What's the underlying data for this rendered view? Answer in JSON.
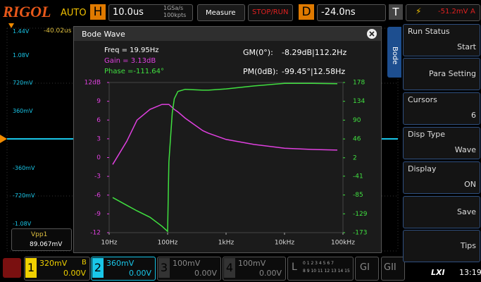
{
  "top_bar": {
    "brand": "RIGOL",
    "mode": "AUTO",
    "h_label": "H",
    "timebase": "10.0us",
    "sample_rate": "1GSa/s",
    "memory": "100kpts",
    "measure": "Measure",
    "run": "STOP/RUN",
    "d_label": "D",
    "delay": "-24.0ns",
    "t_label": "T",
    "trigger_level": "-51.2mV",
    "trigger_source": "A"
  },
  "scope": {
    "offset": "-40.02us",
    "scale_labels": [
      "1.44V",
      "1.08V",
      "720mV",
      "360mV",
      "-360mV",
      "-720mV",
      "-1.08V"
    ],
    "measurement": {
      "label": "Vpp1",
      "value": "89.067mV"
    }
  },
  "bode": {
    "title": "Bode Wave",
    "freq": "Freq = 19.95Hz",
    "gain": "Gain = 3.13dB",
    "phase": "Phase =-111.64°",
    "gm_label": "GM(0°):",
    "gm_value": "-8.29dB|112.2Hz",
    "pm_label": "PM(0dB):",
    "pm_value": "-99.45°|12.58Hz",
    "chart": {
      "type": "line",
      "log_x": true,
      "x": [
        11.5,
        20,
        30,
        50,
        80,
        100,
        105,
        120,
        130,
        150,
        200,
        400,
        500,
        1000,
        3000,
        10000,
        30000,
        80000
      ],
      "xlim": [
        10,
        100000
      ],
      "xticks": [
        {
          "value": 10,
          "label": "10Hz"
        },
        {
          "value": 100,
          "label": "100Hz"
        },
        {
          "value": 1000,
          "label": "1kHz"
        },
        {
          "value": 10000,
          "label": "10kHz"
        },
        {
          "value": 100000,
          "label": "100kHz"
        }
      ],
      "ylim": [
        -12,
        12
      ],
      "yticks": [
        {
          "value": 12,
          "label": "12dB"
        },
        9,
        6,
        3,
        0,
        -3,
        -6,
        -9,
        -12
      ],
      "y2lim": [
        -173,
        178
      ],
      "y2ticks": [
        178,
        134,
        90,
        46,
        2,
        -41,
        -85,
        -129,
        -173
      ],
      "series": [
        {
          "color": "#e040e0",
          "values": [
            -1.1,
            2.6,
            6,
            7.7,
            8.5,
            8.5,
            8.5,
            8.0,
            7.7,
            7.3,
            6.3,
            4.3,
            3.9,
            2.9,
            2.1,
            1.5,
            1.3,
            1.2
          ]
        },
        {
          "color": "#40e040",
          "axis": "y2",
          "values": [
            -91,
            -109,
            -122,
            -137,
            -158,
            -170,
            -8,
            107,
            140,
            157,
            162,
            160,
            160,
            163,
            170,
            176,
            176,
            175
          ]
        }
      ]
    }
  },
  "side_menu": {
    "tab": "Bode",
    "items": [
      {
        "label": "Run Status",
        "value": "Start"
      },
      {
        "label": "Para Setting"
      },
      {
        "label": "Cursors",
        "value": "6"
      },
      {
        "label": "Disp Type",
        "value": "Wave"
      },
      {
        "label": "Display",
        "value": "ON"
      },
      {
        "label": "Save"
      },
      {
        "label": "Tips"
      }
    ]
  },
  "bottom_bar": {
    "channels": [
      {
        "number": "1",
        "scale": "320mV",
        "flag": "B",
        "offset": "0.00V"
      },
      {
        "number": "2",
        "scale": "360mV",
        "offset": "0.00V"
      },
      {
        "number": "3",
        "scale": "100mV",
        "offset": "0.00V"
      },
      {
        "number": "4",
        "scale": "100mV",
        "offset": "0.00V"
      }
    ],
    "logic": {
      "label": "L",
      "bits_low": "0 1 2 3 4 5 6 7",
      "bits_high": "8 9 10 11 12 13 14 15"
    },
    "gen1": "GI",
    "gen2": "GII",
    "lxi": "LXI",
    "time": "13:19"
  }
}
